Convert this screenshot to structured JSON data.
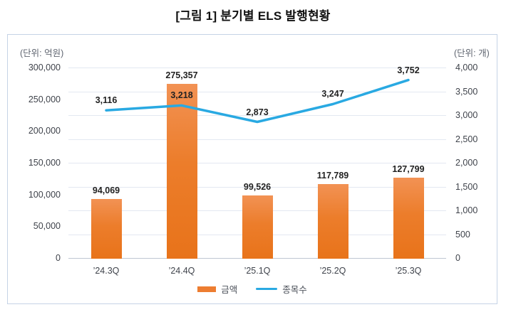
{
  "chart_data": {
    "type": "combo-bar-line",
    "title": "[그림 1] 분기별 ELS 발행현황",
    "categories": [
      "’24.3Q",
      "’24.4Q",
      "’25.1Q",
      "’25.2Q",
      "’25.3Q"
    ],
    "series": [
      {
        "name": "금액",
        "type": "bar",
        "axis": "left",
        "values": [
          94069,
          275357,
          99526,
          117789,
          127799
        ],
        "labels": [
          "94,069",
          "275,357",
          "99,526",
          "117,789",
          "127,799"
        ],
        "color": "#ED7D31"
      },
      {
        "name": "종목수",
        "type": "line",
        "axis": "right",
        "values": [
          3116,
          3218,
          2873,
          3247,
          3752
        ],
        "labels": [
          "3,116",
          "3,218",
          "2,873",
          "3,247",
          "3,752"
        ],
        "color": "#29A9E2"
      }
    ],
    "left_axis": {
      "unit_label": "(단위: 억원)",
      "min": 0,
      "max": 300000,
      "tick_step": 50000,
      "ticks": [
        "0",
        "50,000",
        "100,000",
        "150,000",
        "200,000",
        "250,000",
        "300,000"
      ]
    },
    "right_axis": {
      "unit_label": "(단위: 개)",
      "min": 0,
      "max": 4000,
      "tick_step": 500,
      "ticks": [
        "0",
        "500",
        "1,000",
        "1,500",
        "2,000",
        "2,500",
        "3,000",
        "3,500",
        "4,000"
      ]
    },
    "grid": {
      "horizontal_divisions": 8,
      "aligned_to": "right_axis"
    },
    "legend": {
      "position": "bottom",
      "items": [
        "금액",
        "종목수"
      ]
    }
  },
  "colors": {
    "bar": "#ED7D31",
    "line": "#29A9E2",
    "gridline": "#E3E8F1",
    "axis_line": "#BFC7D3",
    "border": "#C5D3E6",
    "tick_text": "#3F434B",
    "data_label_text": "#222222",
    "unit_text": "#5F6570"
  }
}
